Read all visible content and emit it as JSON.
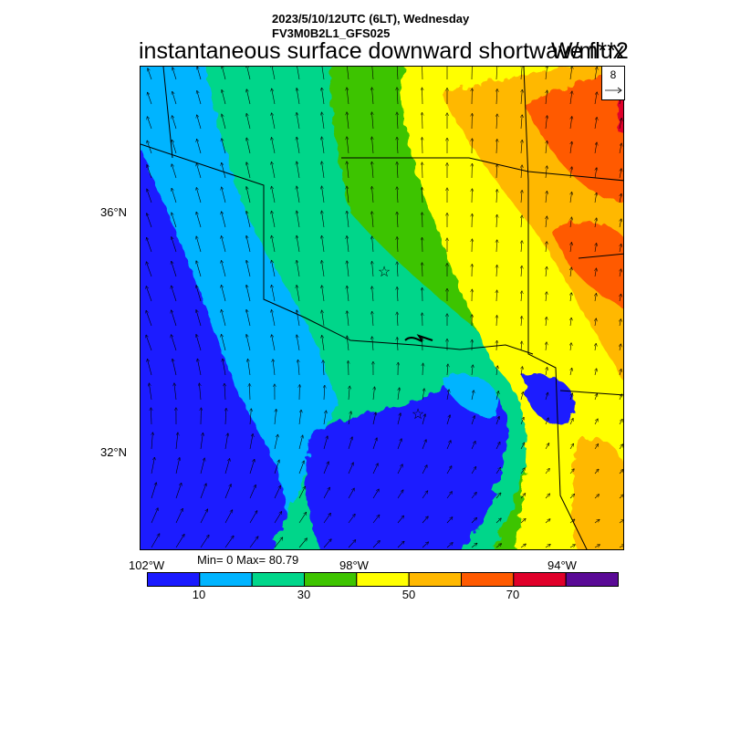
{
  "header": {
    "line1": "2023/5/10/12UTC (6LT), Wednesday",
    "line2": "FV3M0B2L1_GFS025",
    "title": "instantaneous surface downward shortwave flux",
    "units": "W/m**2"
  },
  "reference_vector": {
    "value": "8"
  },
  "axes": {
    "lat_labels": [
      "36°N",
      "32°N"
    ],
    "lon_labels": [
      "102°W",
      "98°W",
      "94°W"
    ]
  },
  "stats": {
    "text": "Min= 0 Max= 80.79"
  },
  "colorbar": {
    "colors": [
      "#1a1aff",
      "#00b4ff",
      "#00d68a",
      "#3ec400",
      "#ffff00",
      "#ffb800",
      "#ff5a00",
      "#e0002a",
      "#5a0a96"
    ],
    "labels": [
      "10",
      "30",
      "50",
      "70"
    ]
  },
  "map_markers": [
    {
      "name": "city-star-1",
      "symbol": "☆"
    },
    {
      "name": "city-star-2",
      "symbol": "☆"
    }
  ]
}
